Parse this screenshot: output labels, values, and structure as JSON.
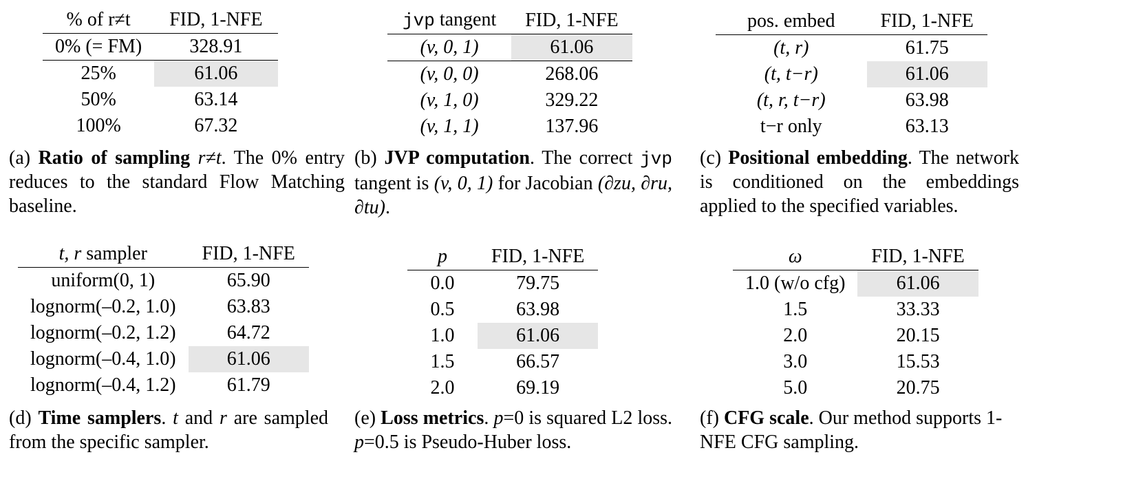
{
  "tables": {
    "a": {
      "header": [
        "% of r≠t",
        "FID, 1-NFE"
      ],
      "rows": [
        [
          "0% (= FM)",
          "328.91"
        ],
        [
          "25%",
          "61.06"
        ],
        [
          "50%",
          "63.14"
        ],
        [
          "100%",
          "67.32"
        ]
      ]
    },
    "b": {
      "header": [
        "jvp",
        "tangent",
        "FID, 1-NFE"
      ],
      "rows": [
        [
          "(v, 0, 1)",
          "61.06"
        ],
        [
          "(v, 0, 0)",
          "268.06"
        ],
        [
          "(v, 1, 0)",
          "329.22"
        ],
        [
          "(v, 1, 1)",
          "137.96"
        ]
      ]
    },
    "c": {
      "header": [
        "pos. embed",
        "FID, 1-NFE"
      ],
      "rows": [
        [
          "(t, r)",
          "61.75"
        ],
        [
          "(t, t−r)",
          "61.06"
        ],
        [
          "(t, r, t−r)",
          "63.98"
        ],
        [
          "t−r only",
          "63.13"
        ]
      ]
    },
    "d": {
      "header": [
        "t, r",
        "sampler",
        "FID, 1-NFE"
      ],
      "rows": [
        [
          "uniform(0, 1)",
          "65.90"
        ],
        [
          "lognorm(–0.2, 1.0)",
          "63.83"
        ],
        [
          "lognorm(–0.2, 1.2)",
          "64.72"
        ],
        [
          "lognorm(–0.4, 1.0)",
          "61.06"
        ],
        [
          "lognorm(–0.4, 1.2)",
          "61.79"
        ]
      ]
    },
    "e": {
      "header": [
        "p",
        "FID, 1-NFE"
      ],
      "rows": [
        [
          "0.0",
          "79.75"
        ],
        [
          "0.5",
          "63.98"
        ],
        [
          "1.0",
          "61.06"
        ],
        [
          "1.5",
          "66.57"
        ],
        [
          "2.0",
          "69.19"
        ]
      ]
    },
    "f": {
      "header": [
        "ω",
        "FID, 1-NFE"
      ],
      "rows": [
        [
          "1.0 (w/o cfg)",
          "61.06"
        ],
        [
          "1.5",
          "33.33"
        ],
        [
          "2.0",
          "20.15"
        ],
        [
          "3.0",
          "15.53"
        ],
        [
          "5.0",
          "20.75"
        ]
      ]
    }
  },
  "captions": {
    "a": {
      "label": "(a)",
      "title": "Ratio of sampling",
      "math": "r≠t",
      "text": ". The 0% entry reduces to the standard Flow Matching baseline."
    },
    "b": {
      "label": "(b)",
      "title": "JVP computation",
      "t1": ". The correct ",
      "mono": "jvp",
      "t2": " tangent is ",
      "m1": "(v, 0, 1)",
      "t3": " for Jacobian ",
      "m2": "(∂zu, ∂ru, ∂tu)",
      "t4": "."
    },
    "c": {
      "label": "(c)",
      "title": "Positional embedding",
      "text": ". The network is conditioned on the embeddings applied to the specified variables."
    },
    "d": {
      "label": "(d)",
      "title": "Time samplers",
      "t1": ". ",
      "m1": "t",
      "t2": " and ",
      "m2": "r",
      "t3": " are sampled from the specific sampler."
    },
    "e": {
      "label": "(e)",
      "title": "Loss metrics",
      "t1": ". ",
      "m1": "p",
      "t2": "=0 is squared L2 loss. ",
      "m2": "p",
      "t3": "=0.5 is Pseudo-Huber loss."
    },
    "f": {
      "label": "(f)",
      "title": "CFG scale",
      "text": ". Our method supports 1-NFE CFG sampling."
    }
  }
}
